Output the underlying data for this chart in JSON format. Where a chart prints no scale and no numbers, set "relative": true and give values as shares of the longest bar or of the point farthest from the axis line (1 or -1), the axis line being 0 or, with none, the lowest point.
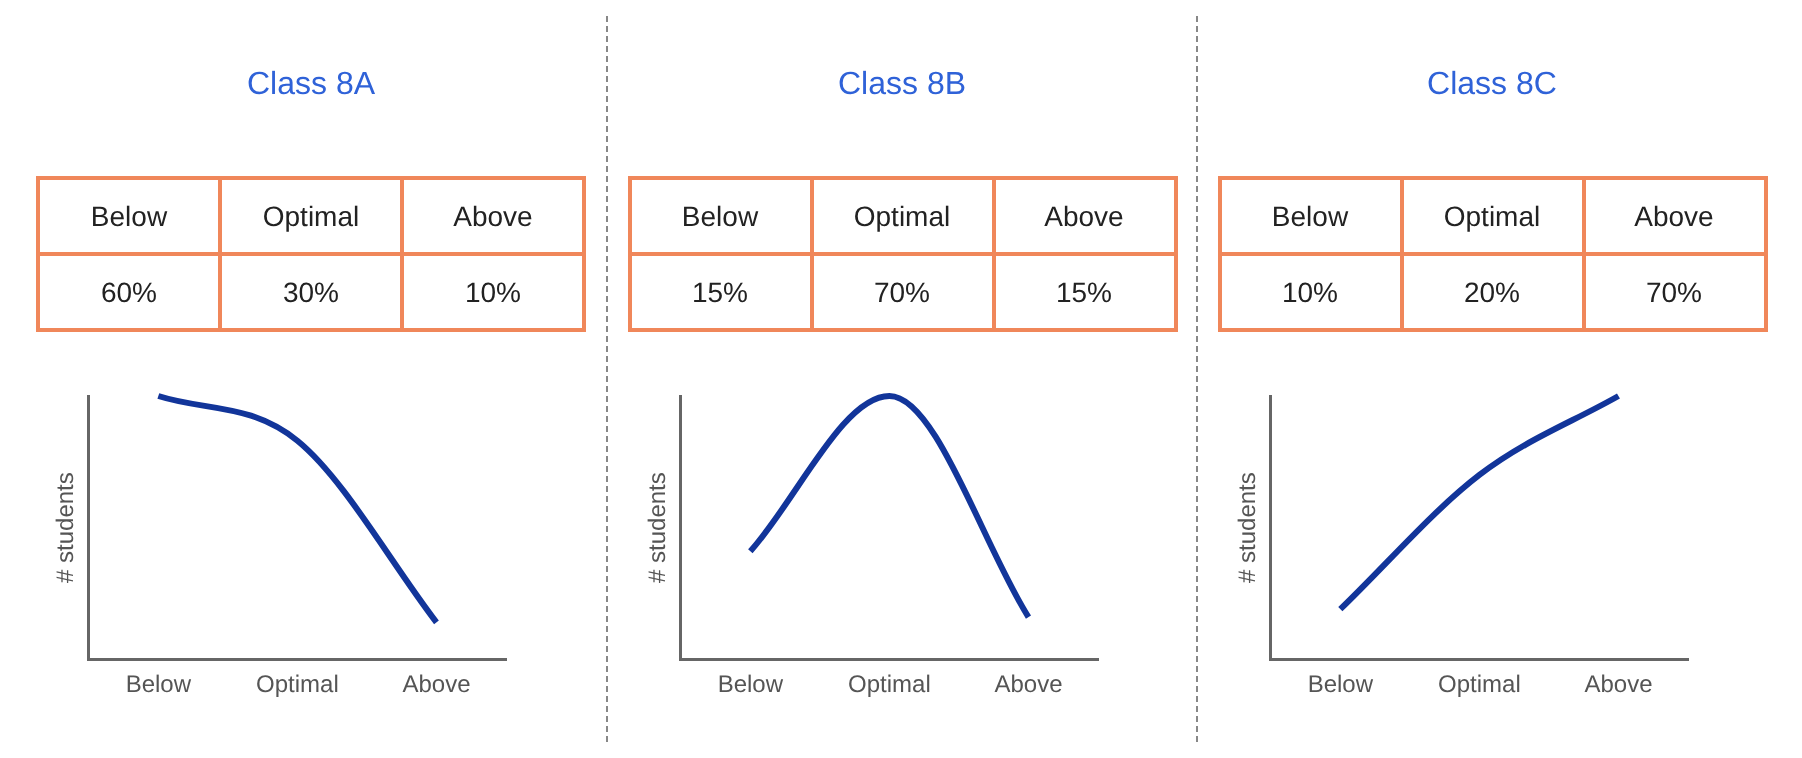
{
  "chart_data": [
    {
      "type": "other",
      "title": "Class 8A",
      "categories": [
        "Below",
        "Optimal",
        "Above"
      ],
      "value_labels": [
        "60%",
        "30%",
        "10%"
      ],
      "color": "#f0875a"
    },
    {
      "type": "line",
      "ylabel": "# students",
      "categories": [
        "Below",
        "Optimal",
        "Above"
      ],
      "relative": true,
      "legend": false,
      "grid": false,
      "marker": "none",
      "series": [
        {
          "color": "#12359a",
          "values": [
            1,
            0.83,
            0.14
          ]
        }
      ]
    },
    {
      "type": "other",
      "title": "Class 8B",
      "categories": [
        "Below",
        "Optimal",
        "Above"
      ],
      "value_labels": [
        "15%",
        "70%",
        "15%"
      ],
      "color": "#f0875a"
    },
    {
      "type": "line",
      "ylabel": "# students",
      "categories": [
        "Below",
        "Optimal",
        "Above"
      ],
      "relative": true,
      "legend": false,
      "grid": false,
      "marker": "none",
      "series": [
        {
          "color": "#12359a",
          "values": [
            0.41,
            1,
            0.16
          ]
        }
      ]
    },
    {
      "type": "other",
      "title": "Class 8C",
      "categories": [
        "Below",
        "Optimal",
        "Above"
      ],
      "value_labels": [
        "10%",
        "20%",
        "70%"
      ],
      "color": "#f0875a"
    },
    {
      "type": "line",
      "ylabel": "# students",
      "categories": [
        "Below",
        "Optimal",
        "Above"
      ],
      "relative": true,
      "legend": false,
      "grid": false,
      "marker": "none",
      "series": [
        {
          "color": "#12359a",
          "values": [
            0.19,
            0.7,
            1
          ]
        }
      ]
    }
  ]
}
